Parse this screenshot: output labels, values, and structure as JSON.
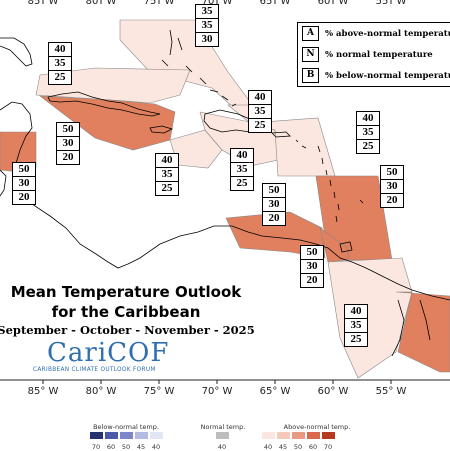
{
  "map": {
    "longitude_labels": [
      "85° W",
      "80° W",
      "75° W",
      "70° W",
      "65° W",
      "60° W",
      "55° W"
    ],
    "title_line1": "Mean Temperature Outlook",
    "title_line2": "for the Caribbean",
    "subtitle": "September - October - November - 2025"
  },
  "legend": {
    "rows": [
      {
        "key": "A",
        "text": "% above-normal temperature"
      },
      {
        "key": "N",
        "text": "% normal temperature"
      },
      {
        "key": "B",
        "text": "% below-normal temperature"
      }
    ]
  },
  "forecast_boxes": [
    {
      "id": "bahamas-east",
      "values": [
        "35",
        "35",
        "30"
      ]
    },
    {
      "id": "bahamas-west",
      "values": [
        "40",
        "35",
        "25"
      ]
    },
    {
      "id": "cuba",
      "values": [
        "50",
        "30",
        "20"
      ]
    },
    {
      "id": "belize",
      "values": [
        "50",
        "30",
        "20"
      ]
    },
    {
      "id": "jamaica",
      "values": [
        "40",
        "35",
        "25"
      ]
    },
    {
      "id": "hispaniola",
      "values": [
        "40",
        "35",
        "25"
      ]
    },
    {
      "id": "turks-caicos",
      "values": [
        "40",
        "35",
        "25"
      ]
    },
    {
      "id": "leeward-islands",
      "values": [
        "40",
        "35",
        "25"
      ]
    },
    {
      "id": "windward-islands",
      "values": [
        "50",
        "30",
        "20"
      ]
    },
    {
      "id": "abc-islands",
      "values": [
        "50",
        "30",
        "20"
      ]
    },
    {
      "id": "trinidad",
      "values": [
        "50",
        "30",
        "20"
      ]
    },
    {
      "id": "guyana",
      "values": [
        "40",
        "35",
        "25"
      ]
    }
  ],
  "logo": {
    "name": "CariCOF",
    "subtitle": "CARIBBEAN CLIMATE OUTLOOK FORUM"
  },
  "color_scale": {
    "below_label": "Below-normal temp.",
    "normal_label": "Normal temp.",
    "above_label": "Above-normal temp.",
    "below_ticks": [
      "70",
      "60",
      "50",
      "45",
      "40"
    ],
    "normal_ticks": [
      "40"
    ],
    "above_ticks": [
      "40",
      "45",
      "50",
      "60",
      "70"
    ],
    "below_colors": [
      "#27336e",
      "#4a5aa8",
      "#7c86c8",
      "#b4bbe2",
      "#e2e5f4"
    ],
    "normal_color": "#bdbdbd",
    "above_colors": [
      "#fbe7e0",
      "#f6c9bb",
      "#e99a82",
      "#d8694c",
      "#b63a22"
    ]
  },
  "region_colors": {
    "light": "#fbe7e0",
    "strong": "#e0805f"
  }
}
